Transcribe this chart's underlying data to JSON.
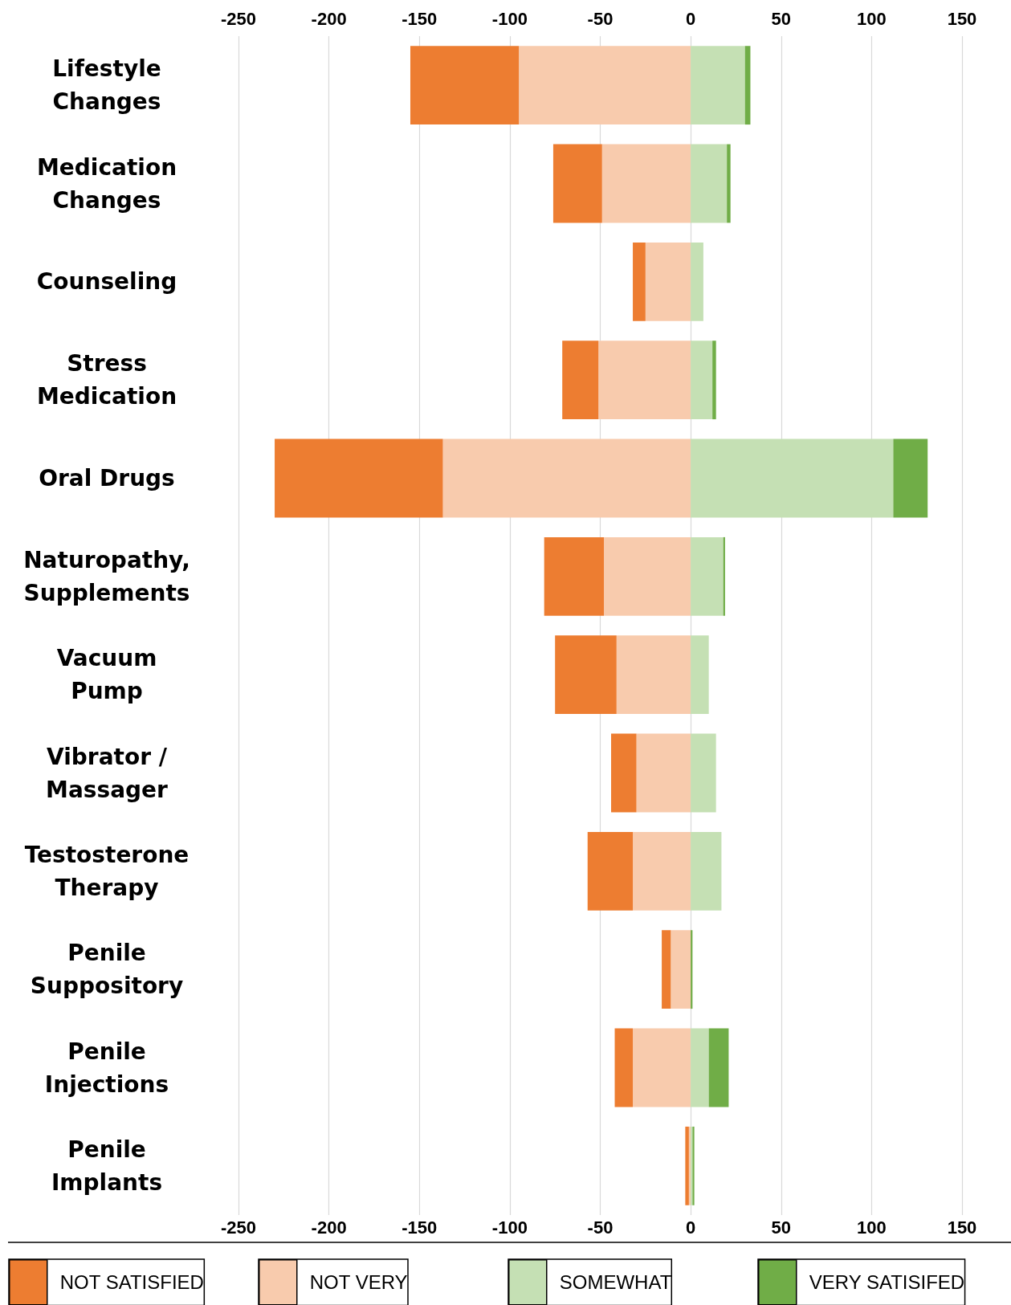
{
  "chart_data": {
    "type": "bar",
    "orientation": "horizontal",
    "stacked": true,
    "categories": [
      "Lifestyle\nChanges",
      "Medication\nChanges",
      "Counseling",
      "Stress\nMedication",
      "Oral Drugs",
      "Naturopathy,\nSupplements",
      "Vacuum\nPump",
      "Vibrator /\nMassager",
      "Testosterone\nTherapy",
      "Penile\nSuppository",
      "Penile\nInjections",
      "Penile\nImplants"
    ],
    "series": [
      {
        "name": "NOT VERY",
        "color": "#f8cbad",
        "values": [
          -95,
          -49,
          -25,
          -51,
          -137,
          -48,
          -41,
          -30,
          -32,
          -11,
          -32,
          -1
        ]
      },
      {
        "name": "NOT SATISFIED",
        "color": "#ed7d31",
        "values": [
          -60,
          -27,
          -7,
          -20,
          -93,
          -33,
          -34,
          -14,
          -25,
          -5,
          -10,
          -2
        ]
      },
      {
        "name": "SOMEWHAT",
        "color": "#c5e0b4",
        "values": [
          30,
          20,
          7,
          12,
          112,
          18,
          10,
          14,
          17,
          null,
          10,
          1
        ]
      },
      {
        "name": "VERY SATISIFED",
        "color": "#70ad47",
        "values": [
          3,
          2,
          null,
          2,
          19,
          1,
          null,
          null,
          null,
          1,
          11,
          1
        ]
      }
    ],
    "xlim": [
      -250,
      150
    ],
    "xticks": [
      -250,
      -200,
      -150,
      -100,
      -50,
      0,
      50,
      100,
      150
    ],
    "x2lim": [
      -250,
      150
    ],
    "x2ticks": [
      -250,
      -200,
      -150,
      -100,
      -50,
      0,
      50,
      100,
      150
    ],
    "grid": "x",
    "legend": "bottom"
  }
}
